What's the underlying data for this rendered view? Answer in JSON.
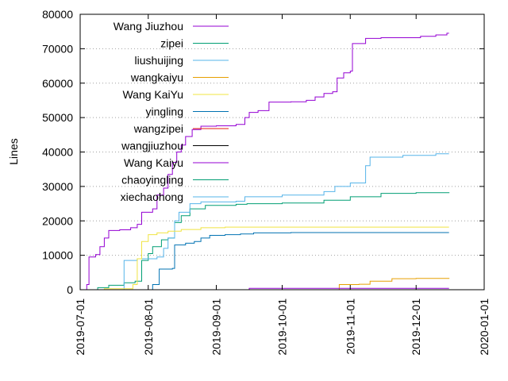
{
  "chart_data": {
    "type": "line",
    "title": "",
    "xlabel": "",
    "ylabel": "Lines",
    "xlim": [
      "2019-07-01",
      "2020-01-01"
    ],
    "ylim": [
      0,
      80000
    ],
    "x_ticks": [
      "2019-07-01",
      "2019-08-01",
      "2019-09-01",
      "2019-10-01",
      "2019-11-01",
      "2019-12-01",
      "2020-01-01"
    ],
    "y_ticks": [
      0,
      10000,
      20000,
      30000,
      40000,
      50000,
      60000,
      70000,
      80000
    ],
    "y_tick_labels": [
      "0",
      "10000",
      "20000",
      "30000",
      "40000",
      "50000",
      "60000",
      "70000",
      "80000"
    ],
    "grid": "horizontal dotted",
    "legend_placement": "top-left",
    "legend": [
      "Wang Jiuzhou",
      "zipei",
      "liushuijing",
      "wangkaiyu",
      "Wang KaiYu",
      "yingling",
      "wangzipei",
      "wangjiuzhou",
      "Wang Kaiyu",
      "chaoyingling",
      "xiechaohong"
    ],
    "series": [
      {
        "name": "Wang Jiuzhou",
        "color": "#9400d3",
        "points": [
          [
            "2019-07-03",
            0
          ],
          [
            "2019-07-04",
            1500
          ],
          [
            "2019-07-05",
            9500
          ],
          [
            "2019-07-08",
            10200
          ],
          [
            "2019-07-10",
            12500
          ],
          [
            "2019-07-12",
            15000
          ],
          [
            "2019-07-14",
            17200
          ],
          [
            "2019-07-19",
            17400
          ],
          [
            "2019-07-24",
            18000
          ],
          [
            "2019-07-27",
            19000
          ],
          [
            "2019-07-29",
            22500
          ],
          [
            "2019-08-03",
            23500
          ],
          [
            "2019-08-05",
            27500
          ],
          [
            "2019-08-08",
            29500
          ],
          [
            "2019-08-10",
            33500
          ],
          [
            "2019-08-12",
            37000
          ],
          [
            "2019-08-14",
            40000
          ],
          [
            "2019-08-16",
            42000
          ],
          [
            "2019-08-18",
            44500
          ],
          [
            "2019-08-21",
            46500
          ],
          [
            "2019-08-25",
            47500
          ],
          [
            "2019-09-01",
            47600
          ],
          [
            "2019-09-10",
            48000
          ],
          [
            "2019-09-14",
            50000
          ],
          [
            "2019-09-16",
            51500
          ],
          [
            "2019-09-20",
            52000
          ],
          [
            "2019-09-25",
            54500
          ],
          [
            "2019-10-05",
            54600
          ],
          [
            "2019-10-12",
            55000
          ],
          [
            "2019-10-16",
            56000
          ],
          [
            "2019-10-20",
            57000
          ],
          [
            "2019-10-24",
            57500
          ],
          [
            "2019-10-26",
            61500
          ],
          [
            "2019-10-29",
            63000
          ],
          [
            "2019-11-01",
            63500
          ],
          [
            "2019-11-02",
            71500
          ],
          [
            "2019-11-08",
            73000
          ],
          [
            "2019-11-15",
            73200
          ],
          [
            "2019-12-03",
            73600
          ],
          [
            "2019-12-10",
            74000
          ],
          [
            "2019-12-15",
            74500
          ],
          [
            "2019-12-16",
            74500
          ]
        ]
      },
      {
        "name": "zipei",
        "color": "#009e73",
        "points": [
          [
            "2019-07-08",
            0
          ],
          [
            "2019-07-09",
            600
          ],
          [
            "2019-07-14",
            1300
          ],
          [
            "2019-07-21",
            2000
          ],
          [
            "2019-07-26",
            2500
          ],
          [
            "2019-07-29",
            8500
          ],
          [
            "2019-08-01",
            10500
          ],
          [
            "2019-08-03",
            12500
          ],
          [
            "2019-08-07",
            14500
          ],
          [
            "2019-08-10",
            15000
          ],
          [
            "2019-08-13",
            19500
          ],
          [
            "2019-08-16",
            21500
          ],
          [
            "2019-08-20",
            23500
          ],
          [
            "2019-08-27",
            24500
          ],
          [
            "2019-09-10",
            24800
          ],
          [
            "2019-09-15",
            25000
          ],
          [
            "2019-10-01",
            25200
          ],
          [
            "2019-10-20",
            26000
          ],
          [
            "2019-11-01",
            27000
          ],
          [
            "2019-11-15",
            28000
          ],
          [
            "2019-12-01",
            28200
          ],
          [
            "2019-12-16",
            28300
          ]
        ]
      },
      {
        "name": "liushuijing",
        "color": "#56b4e9",
        "points": [
          [
            "2019-07-20",
            0
          ],
          [
            "2019-07-21",
            8500
          ],
          [
            "2019-07-27",
            9000
          ],
          [
            "2019-08-05",
            9500
          ],
          [
            "2019-08-08",
            12000
          ],
          [
            "2019-08-10",
            15000
          ],
          [
            "2019-08-13",
            20000
          ],
          [
            "2019-08-15",
            22500
          ],
          [
            "2019-08-20",
            25000
          ],
          [
            "2019-08-25",
            25500
          ],
          [
            "2019-09-10",
            25700
          ],
          [
            "2019-09-14",
            27000
          ],
          [
            "2019-10-01",
            27500
          ],
          [
            "2019-10-20",
            28500
          ],
          [
            "2019-10-25",
            30000
          ],
          [
            "2019-11-01",
            31000
          ],
          [
            "2019-11-08",
            36000
          ],
          [
            "2019-11-10",
            38500
          ],
          [
            "2019-11-25",
            39000
          ],
          [
            "2019-12-10",
            39500
          ],
          [
            "2019-12-16",
            39500
          ]
        ]
      },
      {
        "name": "wangkaiyu",
        "color": "#e69f00",
        "points": [
          [
            "2019-10-26",
            0
          ],
          [
            "2019-10-27",
            1500
          ],
          [
            "2019-11-05",
            1600
          ],
          [
            "2019-11-10",
            2500
          ],
          [
            "2019-11-20",
            3200
          ],
          [
            "2019-12-01",
            3300
          ],
          [
            "2019-12-16",
            3400
          ]
        ]
      },
      {
        "name": "Wang KaiYu",
        "color": "#f0e442",
        "points": [
          [
            "2019-07-09",
            0
          ],
          [
            "2019-07-12",
            300
          ],
          [
            "2019-07-25",
            1500
          ],
          [
            "2019-07-27",
            9000
          ],
          [
            "2019-07-29",
            14000
          ],
          [
            "2019-08-01",
            16000
          ],
          [
            "2019-08-05",
            16500
          ],
          [
            "2019-08-10",
            17000
          ],
          [
            "2019-08-16",
            17500
          ],
          [
            "2019-08-25",
            18000
          ],
          [
            "2019-09-05",
            18200
          ],
          [
            "2019-12-16",
            18200
          ]
        ]
      },
      {
        "name": "yingling",
        "color": "#0072b2",
        "points": [
          [
            "2019-07-28",
            0
          ],
          [
            "2019-08-03",
            1500
          ],
          [
            "2019-08-06",
            6000
          ],
          [
            "2019-08-12",
            6200
          ],
          [
            "2019-08-13",
            13000
          ],
          [
            "2019-08-18",
            13500
          ],
          [
            "2019-08-22",
            14000
          ],
          [
            "2019-08-25",
            15000
          ],
          [
            "2019-08-29",
            15800
          ],
          [
            "2019-09-05",
            16000
          ],
          [
            "2019-09-12",
            16200
          ],
          [
            "2019-09-18",
            16500
          ],
          [
            "2019-10-05",
            16600
          ],
          [
            "2019-12-16",
            16600
          ]
        ]
      },
      {
        "name": "wangzipei",
        "color": "#e51e10",
        "points": []
      },
      {
        "name": "wangjiuzhou",
        "color": "#000000",
        "points": []
      },
      {
        "name": "Wang Kaiyu",
        "color": "#9400d3",
        "points": [
          [
            "2019-09-15",
            0
          ],
          [
            "2019-09-16",
            400
          ],
          [
            "2019-12-16",
            400
          ]
        ]
      },
      {
        "name": "chaoyingling",
        "color": "#009e73",
        "points": []
      },
      {
        "name": "xiechaohong",
        "color": "#56b4e9",
        "points": []
      }
    ]
  }
}
